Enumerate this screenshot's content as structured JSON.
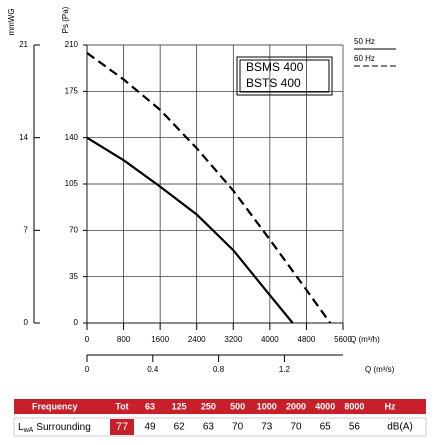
{
  "chart_data": {
    "type": "line",
    "y_label": "Ps (Pa)",
    "y2_label": "mmWG",
    "x_label": "Q (m³/h)",
    "x2_label": "Q (m³/s)",
    "xlim": [
      0,
      5600
    ],
    "xticks": [
      0,
      800,
      1600,
      2400,
      3200,
      4000,
      4800,
      5600
    ],
    "x2lim": [
      0,
      1.556
    ],
    "x2ticks": [
      0,
      0.4,
      0.8,
      1.2
    ],
    "ylim": [
      0,
      210
    ],
    "yticks": [
      0,
      35,
      70,
      105,
      140,
      175,
      210
    ],
    "y2lim": [
      0,
      21
    ],
    "y2ticks": [
      0,
      7,
      14,
      21
    ],
    "grid": true,
    "models": [
      "BSMS 400",
      "BSTS 400"
    ],
    "series": [
      {
        "name": "50 Hz",
        "color": "#000000",
        "dashed": false,
        "x": [
          0,
          800,
          1600,
          2400,
          3200,
          4000,
          4500
        ],
        "values": [
          140,
          123,
          103,
          82,
          55,
          21,
          0
        ]
      },
      {
        "name": "60 Hz",
        "color": "#000000",
        "dashed": true,
        "x": [
          0,
          800,
          1600,
          2400,
          3200,
          4000,
          4800,
          5320
        ],
        "values": [
          204,
          184,
          161,
          132,
          100,
          63,
          25,
          0
        ]
      }
    ]
  },
  "table": {
    "header_label": "Frequency",
    "header_total": "Tot",
    "bands": [
      63,
      125,
      250,
      500,
      1000,
      2000,
      4000,
      8000
    ],
    "band_unit": "Hz",
    "row_symbol": "L",
    "row_sub": "wA",
    "row_label": "Surrounding",
    "total": 77,
    "values": [
      49,
      62,
      63,
      70,
      73,
      70,
      65,
      56
    ],
    "unit": "dB(A)"
  }
}
